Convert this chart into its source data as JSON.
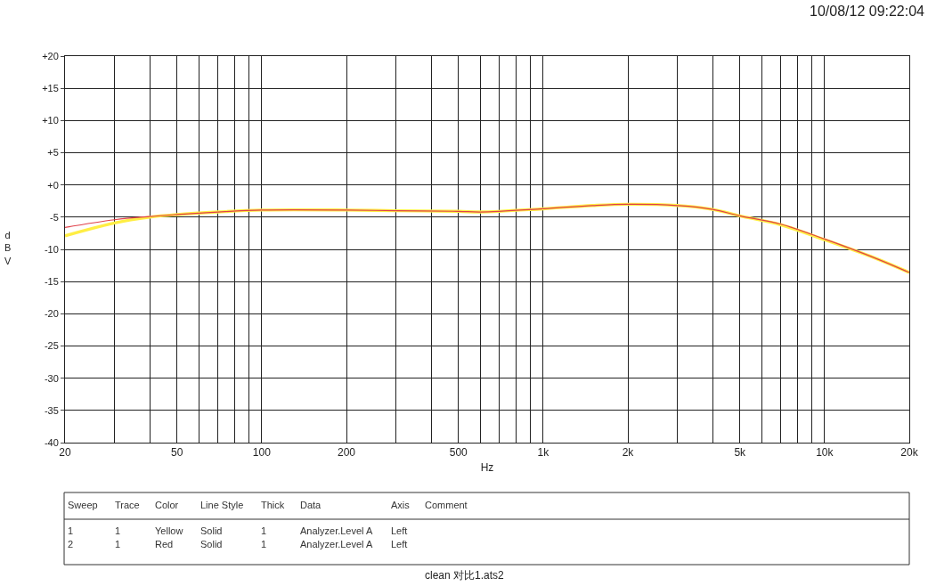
{
  "chart_data": {
    "type": "line",
    "xlabel": "Hz",
    "ylabel": "dBV",
    "log": "x",
    "x": [
      20,
      30,
      40,
      50,
      70,
      100,
      200,
      300,
      500,
      600,
      1000,
      1500,
      2000,
      3000,
      4000,
      5000,
      7000,
      10000,
      15000,
      20000
    ],
    "series": [
      {
        "color": "#ffee44",
        "values": [
          -7.9,
          -5.9,
          -5.0,
          -4.6,
          -4.2,
          -3.9,
          -3.9,
          -4.0,
          -4.1,
          -4.2,
          -3.7,
          -3.2,
          -3.0,
          -3.2,
          -3.8,
          -4.8,
          -6.2,
          -8.5,
          -11.3,
          -13.6
        ]
      },
      {
        "color": "#e0404a",
        "values": [
          -6.6,
          -5.4,
          -4.9,
          -4.6,
          -4.2,
          -3.9,
          -3.9,
          -4.0,
          -4.1,
          -4.2,
          -3.7,
          -3.2,
          -3.0,
          -3.2,
          -3.8,
          -4.8,
          -6.1,
          -8.4,
          -11.3,
          -13.6
        ]
      }
    ],
    "xlim": [
      20,
      20000
    ],
    "xticks": [
      20,
      {
        "value": 30,
        "label": null
      },
      {
        "value": 40,
        "label": null
      },
      50,
      {
        "value": 60,
        "label": null
      },
      {
        "value": 70,
        "label": null
      },
      {
        "value": 80,
        "label": null
      },
      {
        "value": 90,
        "label": null
      },
      100,
      200,
      {
        "value": 300,
        "label": null
      },
      {
        "value": 400,
        "label": null
      },
      500,
      {
        "value": 600,
        "label": null
      },
      {
        "value": 700,
        "label": null
      },
      {
        "value": 800,
        "label": null
      },
      {
        "value": 900,
        "label": null
      },
      {
        "value": 1000,
        "label": "1k"
      },
      {
        "value": 2000,
        "label": "2k"
      },
      {
        "value": 3000,
        "label": null
      },
      {
        "value": 4000,
        "label": null
      },
      {
        "value": 5000,
        "label": "5k"
      },
      {
        "value": 6000,
        "label": null
      },
      {
        "value": 7000,
        "label": null
      },
      {
        "value": 8000,
        "label": null
      },
      {
        "value": 9000,
        "label": null
      },
      {
        "value": 10000,
        "label": "10k"
      },
      {
        "value": 20000,
        "label": "20k"
      }
    ],
    "ylim": [
      -40,
      20
    ],
    "yticks": [
      {
        "value": 20,
        "label": "+20"
      },
      {
        "value": 15,
        "label": "+15"
      },
      {
        "value": 10,
        "label": "+10"
      },
      {
        "value": 5,
        "label": "+5"
      },
      {
        "value": 0,
        "label": "+0"
      },
      -5,
      -10,
      -15,
      -20,
      -25,
      -30,
      -35,
      -40
    ],
    "grid": true,
    "line_style": "solid",
    "marker": "none",
    "annotations": [
      "10/08/12 09:22:04",
      "clean 对比1.ats2",
      "Sweep",
      "Trace",
      "Color",
      "Line Style",
      "Thick",
      "Data",
      "Axis",
      "Comment",
      "1",
      "1",
      "Yellow",
      "Solid",
      "1",
      "Analyzer.Level A",
      "Left",
      "2",
      "1",
      "Red",
      "Solid",
      "1",
      "Analyzer.Level A",
      "Left"
    ]
  }
}
